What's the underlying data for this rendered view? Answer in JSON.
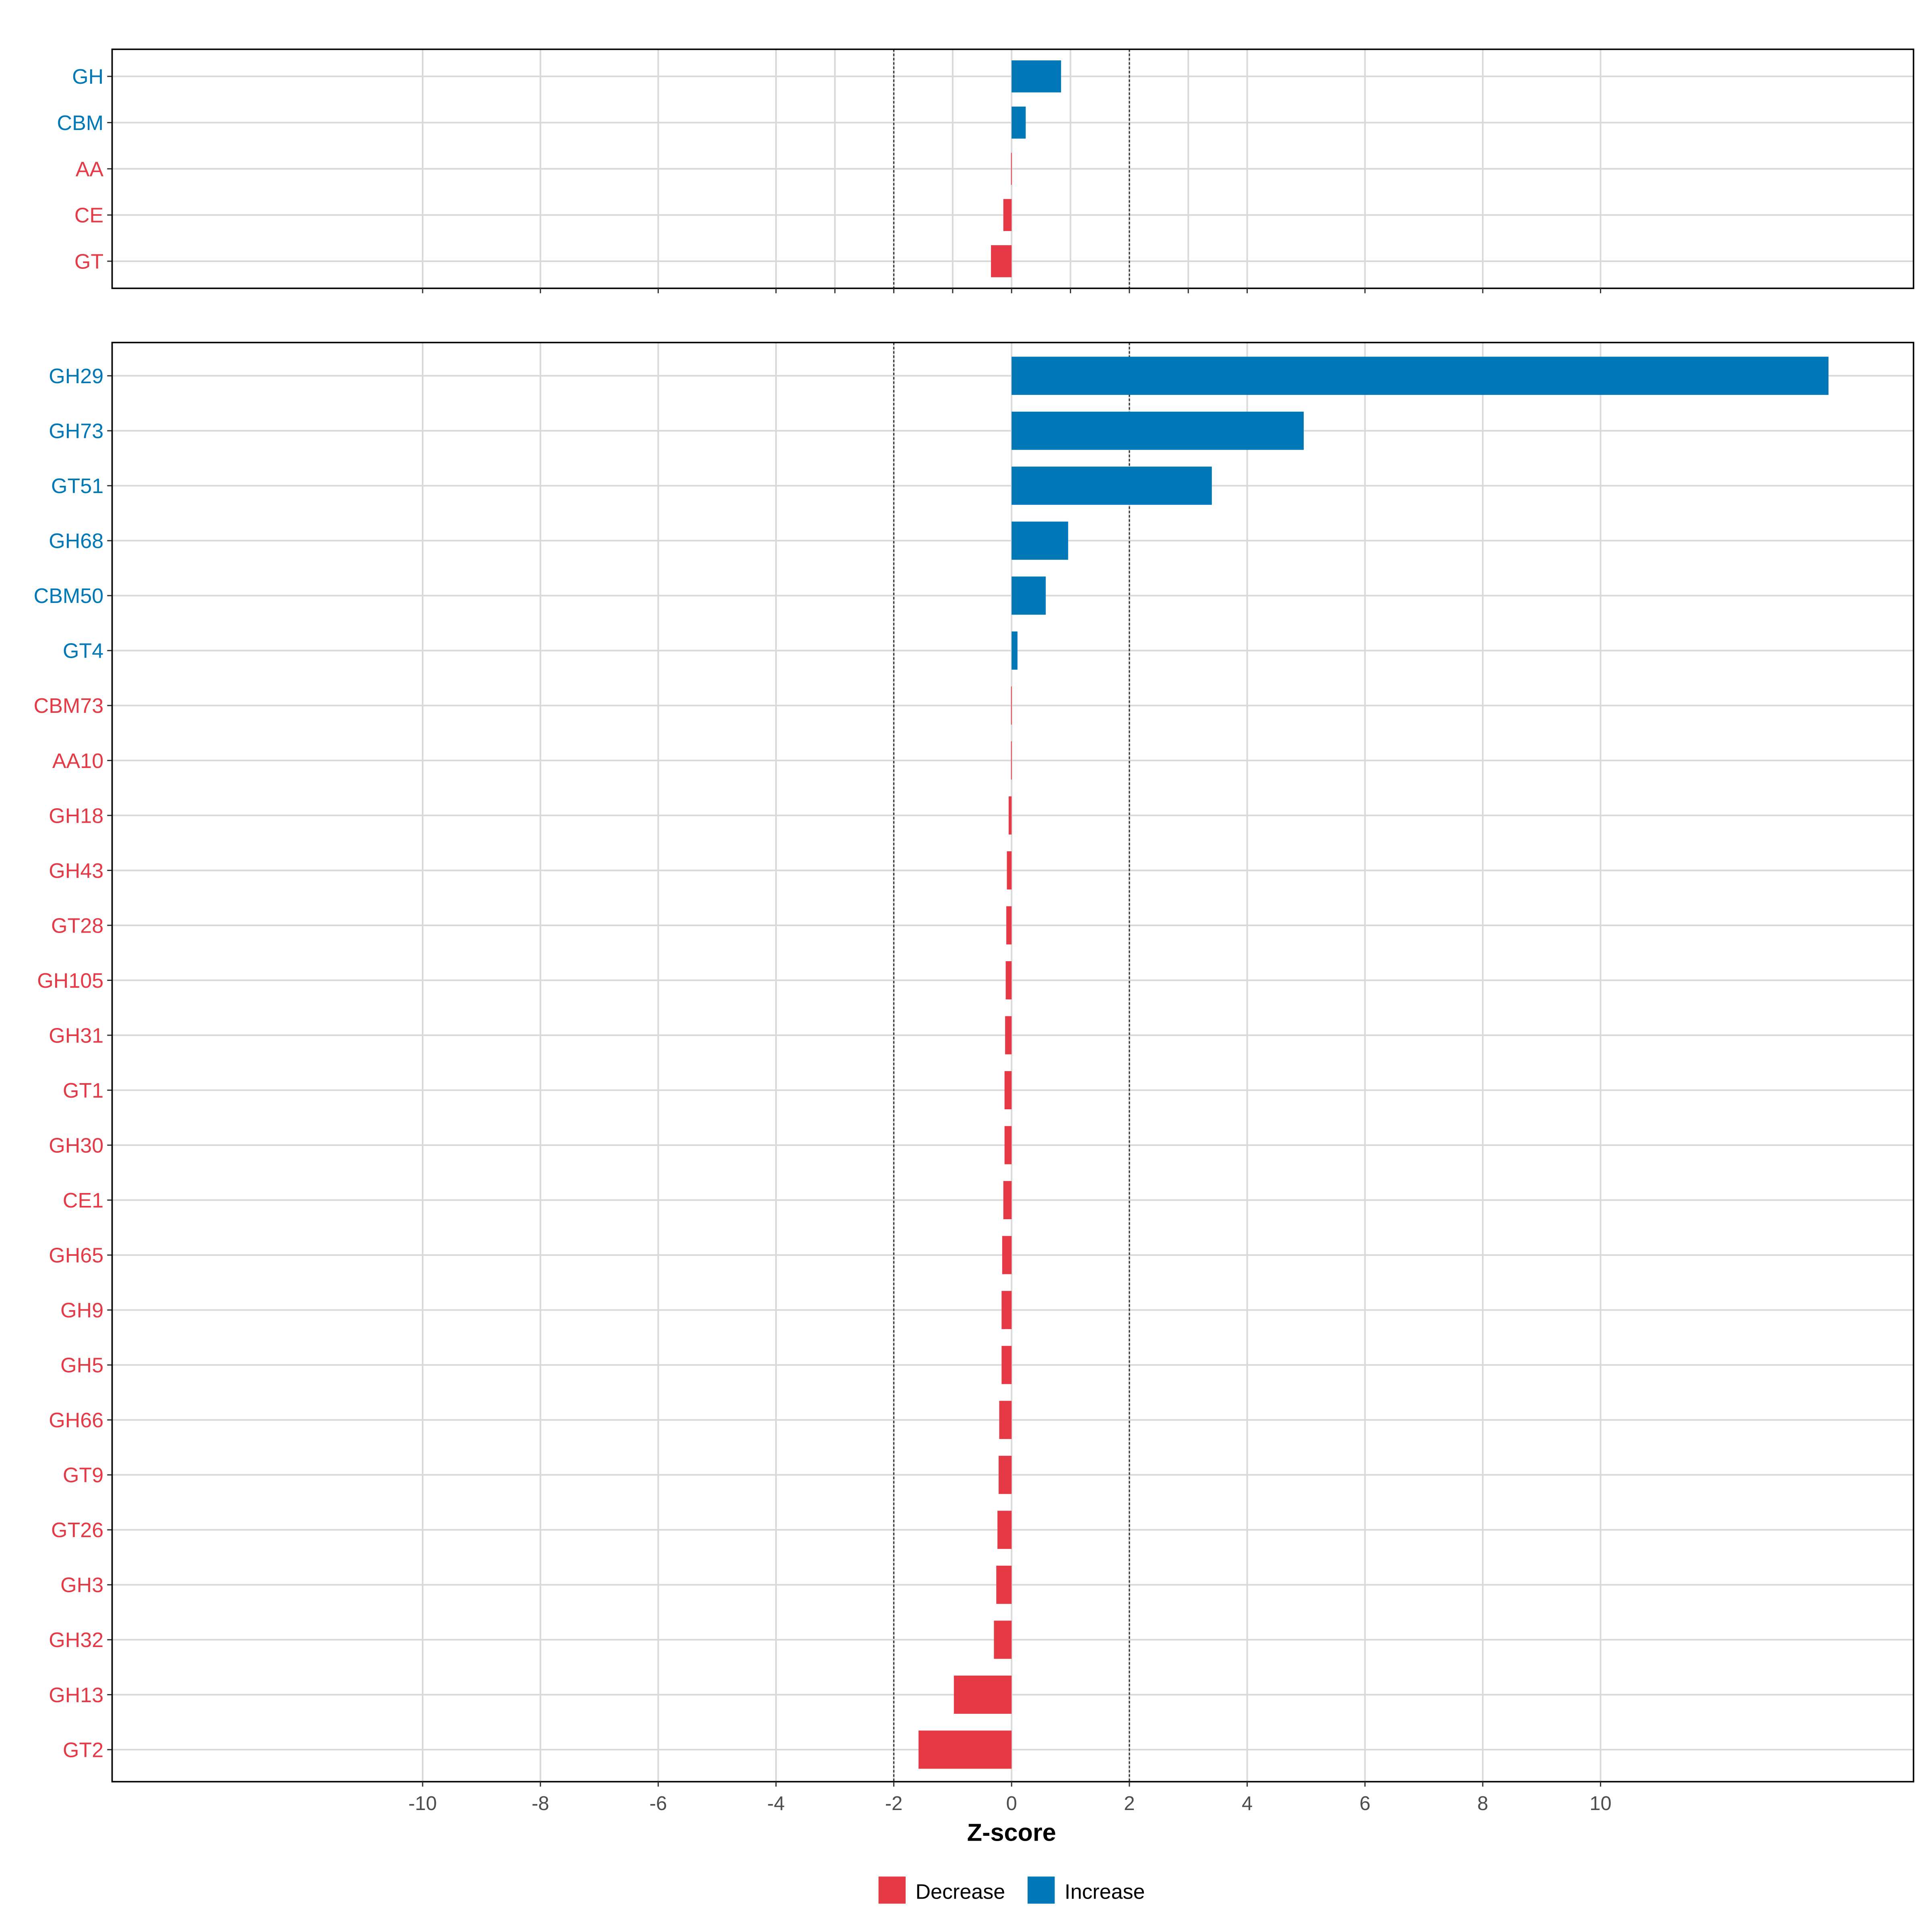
{
  "colors": {
    "increase": "#0077b6",
    "decrease": "#e63946",
    "grid": "#d9d9d9"
  },
  "chart_data": [
    {
      "type": "bar",
      "orientation": "horizontal",
      "panel": "top",
      "categories": [
        "GH",
        "CBM",
        "AA",
        "CE",
        "GT"
      ],
      "values": [
        0.84,
        0.24,
        -0.01,
        -0.14,
        -0.35
      ],
      "xlim": [
        -15.2,
        15.25
      ],
      "grid": true,
      "reference_lines": [
        -2,
        2
      ]
    },
    {
      "type": "bar",
      "orientation": "horizontal",
      "panel": "bottom",
      "categories": [
        "GH29",
        "GH73",
        "GT51",
        "GH68",
        "CBM50",
        "GT4",
        "CBM73",
        "AA10",
        "GH18",
        "GH43",
        "GT28",
        "GH105",
        "GH31",
        "GT1",
        "GH30",
        "CE1",
        "GH65",
        "GH9",
        "GH5",
        "GH66",
        "GT9",
        "GT26",
        "GH3",
        "GH32",
        "GH13",
        "GT2"
      ],
      "values": [
        13.87,
        4.96,
        3.4,
        0.96,
        0.58,
        0.1,
        -0.01,
        -0.01,
        -0.05,
        -0.08,
        -0.09,
        -0.1,
        -0.11,
        -0.12,
        -0.12,
        -0.14,
        -0.16,
        -0.17,
        -0.17,
        -0.21,
        -0.22,
        -0.24,
        -0.26,
        -0.3,
        -0.98,
        -1.58
      ],
      "xlim": [
        -15.2,
        15.25
      ],
      "grid": true,
      "reference_lines": [
        -2,
        2
      ],
      "xticks": [
        "-10",
        "-8",
        "-6",
        "-4",
        "-2",
        "0",
        "2",
        "4",
        "6",
        "8",
        "10"
      ],
      "xlabel": "Z-score"
    }
  ],
  "legend": {
    "position": "bottom",
    "items": [
      {
        "label": "Decrease",
        "key": "decrease"
      },
      {
        "label": "Increase",
        "key": "increase"
      }
    ]
  }
}
